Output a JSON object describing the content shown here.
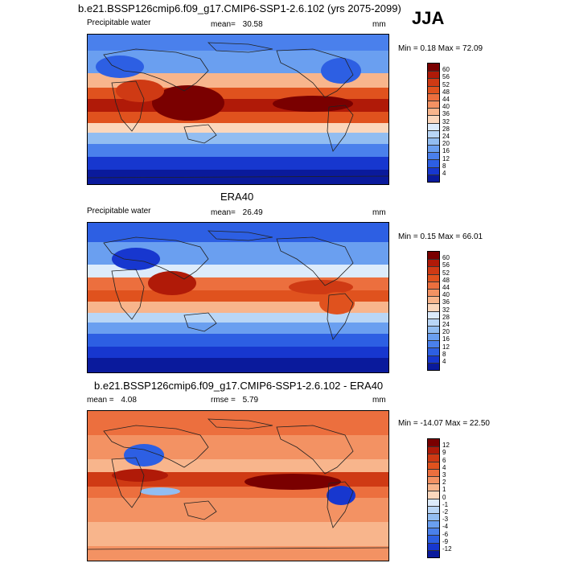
{
  "season": "JJA",
  "panels": [
    {
      "title": "b.e21.BSSP126cmip6.f09_g17.CMIP6-SSP1-2.6.102 (yrs 2075-2099)",
      "variable": "Precipitable water",
      "mean_label": "mean=",
      "mean_value": "30.58",
      "extra_label": "",
      "extra_value": "",
      "units": "mm",
      "minmax": "Min =   0.18 Max =  72.09",
      "colorbar": {
        "labels": [
          "60",
          "56",
          "52",
          "48",
          "44",
          "40",
          "36",
          "32",
          "28",
          "24",
          "20",
          "16",
          "12",
          "8",
          "4"
        ],
        "colors": [
          "#7a0000",
          "#b01a08",
          "#cf3a14",
          "#e0521e",
          "#ec6f3e",
          "#f39263",
          "#f8b58c",
          "#fbd7bc",
          "#dcebfb",
          "#b9d6f6",
          "#92bdf1",
          "#6a9ff0",
          "#4a80ec",
          "#2d5fe3",
          "#1737cf",
          "#0a1a9c"
        ]
      }
    },
    {
      "title": "ERA40",
      "variable": "Precipitable water",
      "mean_label": "mean=",
      "mean_value": "26.49",
      "extra_label": "",
      "extra_value": "",
      "units": "mm",
      "minmax": "Min =   0.15 Max =  66.01",
      "colorbar": {
        "labels": [
          "60",
          "56",
          "52",
          "48",
          "44",
          "40",
          "36",
          "32",
          "28",
          "24",
          "20",
          "16",
          "12",
          "8",
          "4"
        ],
        "colors": [
          "#7a0000",
          "#b01a08",
          "#cf3a14",
          "#e0521e",
          "#ec6f3e",
          "#f39263",
          "#f8b58c",
          "#fbd7bc",
          "#dcebfb",
          "#b9d6f6",
          "#92bdf1",
          "#6a9ff0",
          "#4a80ec",
          "#2d5fe3",
          "#1737cf",
          "#0a1a9c"
        ]
      }
    },
    {
      "title": "b.e21.BSSP126cmip6.f09_g17.CMIP6-SSP1-2.6.102 - ERA40",
      "variable": "",
      "mean_label": "mean =",
      "mean_value": "4.08",
      "extra_label": "rmse =",
      "extra_value": "5.79",
      "units": "mm",
      "minmax": "Min = -14.07 Max =  22.50",
      "colorbar": {
        "labels": [
          "12",
          "9",
          "6",
          "4",
          "3",
          "2",
          "1",
          "0",
          "-1",
          "-2",
          "-3",
          "-4",
          "-6",
          "-9",
          "-12"
        ],
        "colors": [
          "#7a0000",
          "#b01a08",
          "#cf3a14",
          "#e0521e",
          "#ec6f3e",
          "#f39263",
          "#f8b58c",
          "#fbd7bc",
          "#dcebfb",
          "#b9d6f6",
          "#92bdf1",
          "#6a9ff0",
          "#4a80ec",
          "#2d5fe3",
          "#1737cf",
          "#0a1a9c"
        ]
      }
    }
  ]
}
